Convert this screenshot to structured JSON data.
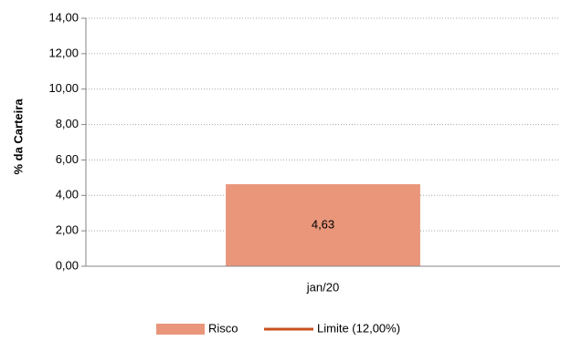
{
  "chart_data": {
    "type": "bar",
    "categories": [
      "jan/20"
    ],
    "series": [
      {
        "name": "Risco",
        "values": [
          4.63
        ],
        "color": "#E9967A"
      },
      {
        "name": "Limite (12,00%)",
        "values": [
          12.0
        ],
        "color": "#C8501E",
        "render": "legend-only"
      }
    ],
    "data_labels": [
      "4,63"
    ],
    "ylabel": "% da Carteira",
    "xlabel": "",
    "ylim": [
      0,
      14
    ],
    "yticks": [
      0,
      2,
      4,
      6,
      8,
      10,
      12,
      14
    ],
    "ytick_labels": [
      "0,00",
      "2,00",
      "4,00",
      "6,00",
      "8,00",
      "10,00",
      "12,00",
      "14,00"
    ],
    "grid": "dotted horizontal",
    "legend_position": "bottom-center"
  }
}
